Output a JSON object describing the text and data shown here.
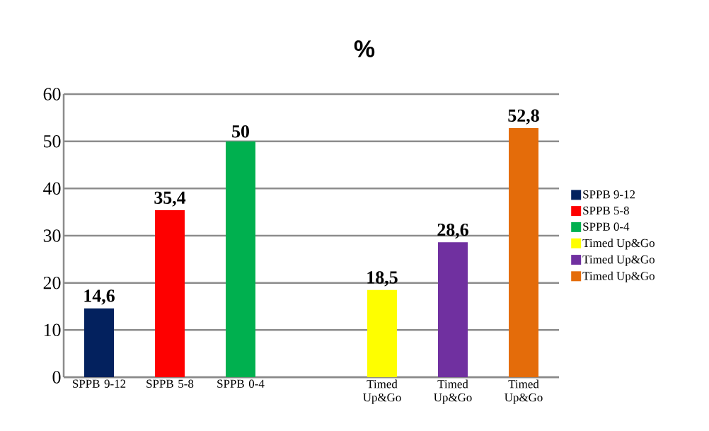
{
  "chart_data": {
    "type": "bar",
    "title": "%",
    "categories": [
      "SPPB 9-12",
      "SPPB 5-8",
      "SPPB 0-4",
      null,
      "Timed Up&Go",
      "Timed Up&Go",
      "Timed Up&Go"
    ],
    "series": [
      {
        "name": "SPPB 9-12",
        "color": "#03215e",
        "values": [
          14.6,
          null,
          null,
          null,
          null,
          null,
          null
        ],
        "value_labels": [
          "14,6",
          null,
          null,
          null,
          null,
          null,
          null
        ]
      },
      {
        "name": "SPPB 5-8",
        "color": "#fe0000",
        "values": [
          null,
          35.4,
          null,
          null,
          null,
          null,
          null
        ],
        "value_labels": [
          null,
          "35,4",
          null,
          null,
          null,
          null,
          null
        ]
      },
      {
        "name": "SPPB 0-4",
        "color": "#00b04f",
        "values": [
          null,
          null,
          50,
          null,
          null,
          null,
          null
        ],
        "value_labels": [
          null,
          null,
          "50",
          null,
          null,
          null,
          null
        ]
      },
      {
        "name": "Timed Up&Go",
        "color": "#fefe00",
        "values": [
          null,
          null,
          null,
          null,
          18.5,
          null,
          null
        ],
        "value_labels": [
          null,
          null,
          null,
          null,
          "18,5",
          null,
          null
        ]
      },
      {
        "name": "Timed Up&Go",
        "color": "#7030a0",
        "values": [
          null,
          null,
          null,
          null,
          null,
          28.6,
          null
        ],
        "value_labels": [
          null,
          null,
          null,
          null,
          null,
          "28,6",
          null
        ]
      },
      {
        "name": "Timed Up&Go",
        "color": "#e46c0a",
        "values": [
          null,
          null,
          null,
          null,
          null,
          null,
          52.8
        ],
        "value_labels": [
          null,
          null,
          null,
          null,
          null,
          null,
          "52,8"
        ]
      }
    ],
    "ylim": [
      0,
      60
    ],
    "yticks": [
      0,
      10,
      20,
      30,
      40,
      50,
      60
    ],
    "grid": "y",
    "legend": "right"
  }
}
